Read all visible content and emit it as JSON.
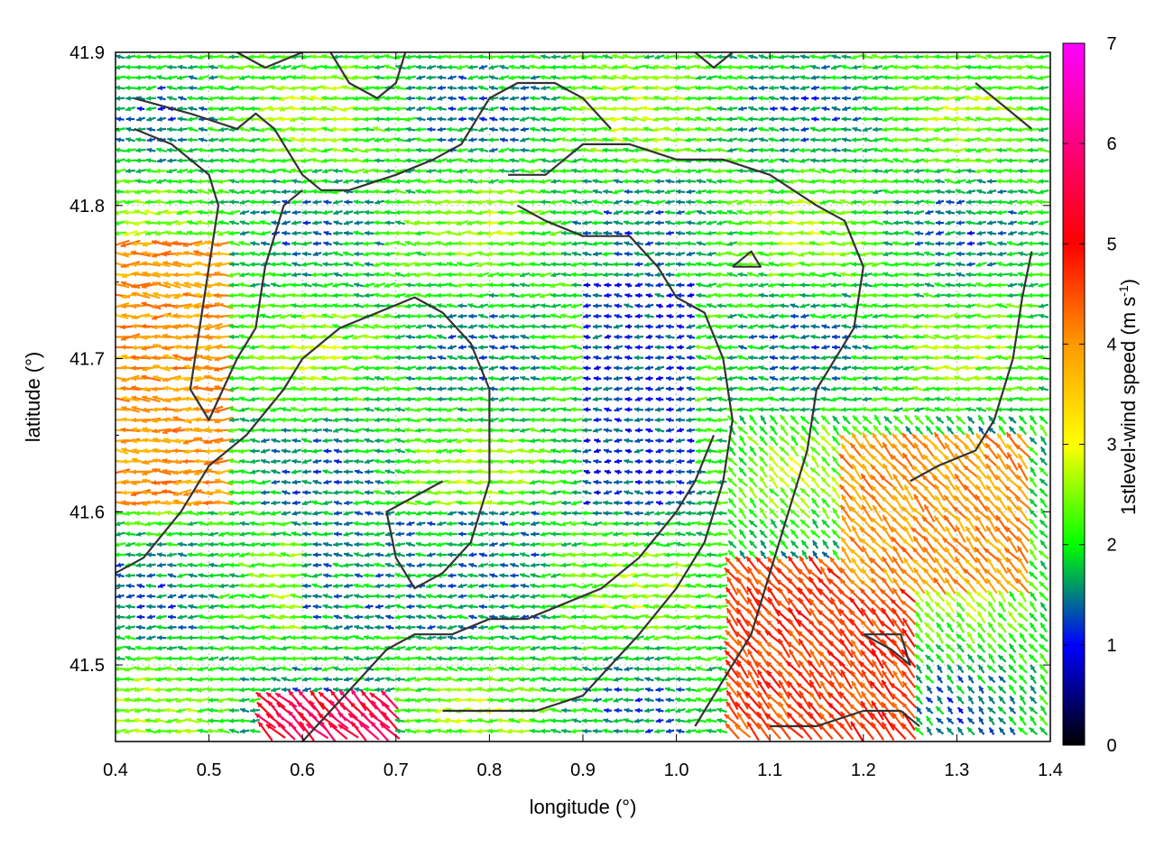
{
  "chart_data": {
    "type": "vector-field",
    "xlabel": "longitude (°)",
    "ylabel": "latitude (°)",
    "xlim": [
      0.4,
      1.4
    ],
    "ylim": [
      41.45,
      41.9
    ],
    "xticks": [
      "0.4",
      "0.5",
      "0.6",
      "0.7",
      "0.8",
      "0.9",
      "1.0",
      "1.1",
      "1.2",
      "1.3",
      "1.4"
    ],
    "yticks": [
      "41.5",
      "41.6",
      "41.7",
      "41.8",
      "41.9"
    ],
    "grid": true,
    "colorbar": {
      "label": "1stlevel-wind speed (m s",
      "label_sup": "-1",
      "label_close": ")",
      "range": [
        0,
        7
      ],
      "ticks": [
        "0",
        "1",
        "2",
        "3",
        "4",
        "5",
        "6",
        "7"
      ],
      "colors": [
        "#000000",
        "#0000ff",
        "#00ff00",
        "#ffff00",
        "#ff9900",
        "#ff0000",
        "#ff00ff"
      ]
    },
    "vectors_description_regions": [
      {
        "x": [
          0.4,
          0.52
        ],
        "y": [
          41.6,
          41.78
        ],
        "speed": 4.0
      },
      {
        "x": [
          0.9,
          1.02
        ],
        "y": [
          41.6,
          41.75
        ],
        "speed": 1.2
      },
      {
        "x": [
          1.05,
          1.25
        ],
        "y": [
          41.45,
          41.57
        ],
        "speed": 4.6
      },
      {
        "x": [
          1.18,
          1.38
        ],
        "y": [
          41.55,
          41.65
        ],
        "speed": 4.0
      },
      {
        "x": [
          0.55,
          0.7
        ],
        "y": [
          41.45,
          41.48
        ],
        "speed": 5.5
      },
      {
        "x": [
          0.6,
          0.85
        ],
        "y": [
          41.52,
          41.6
        ],
        "speed": 1.6
      }
    ],
    "contour_lines": [
      [
        [
          0.42,
          41.87
        ],
        [
          0.48,
          41.86
        ],
        [
          0.53,
          41.85
        ],
        [
          0.55,
          41.86
        ],
        [
          0.57,
          41.85
        ],
        [
          0.6,
          41.82
        ],
        [
          0.62,
          41.81
        ],
        [
          0.65,
          41.81
        ],
        [
          0.7,
          41.82
        ],
        [
          0.74,
          41.83
        ],
        [
          0.77,
          41.84
        ],
        [
          0.8,
          41.87
        ],
        [
          0.83,
          41.88
        ],
        [
          0.87,
          41.88
        ],
        [
          0.9,
          41.87
        ],
        [
          0.93,
          41.85
        ]
      ],
      [
        [
          0.42,
          41.85
        ],
        [
          0.46,
          41.84
        ],
        [
          0.5,
          41.82
        ],
        [
          0.51,
          41.8
        ],
        [
          0.5,
          41.76
        ],
        [
          0.49,
          41.72
        ],
        [
          0.48,
          41.68
        ],
        [
          0.5,
          41.66
        ],
        [
          0.53,
          41.7
        ],
        [
          0.55,
          41.72
        ],
        [
          0.56,
          41.76
        ],
        [
          0.58,
          41.8
        ],
        [
          0.6,
          41.81
        ]
      ],
      [
        [
          0.53,
          41.9
        ],
        [
          0.56,
          41.89
        ],
        [
          0.6,
          41.9
        ]
      ],
      [
        [
          0.63,
          41.9
        ],
        [
          0.65,
          41.88
        ],
        [
          0.68,
          41.87
        ],
        [
          0.7,
          41.88
        ],
        [
          0.71,
          41.9
        ]
      ],
      [
        [
          0.4,
          41.56
        ],
        [
          0.43,
          41.57
        ],
        [
          0.47,
          41.6
        ],
        [
          0.5,
          41.63
        ],
        [
          0.54,
          41.65
        ],
        [
          0.58,
          41.68
        ],
        [
          0.6,
          41.7
        ],
        [
          0.64,
          41.72
        ],
        [
          0.68,
          41.73
        ],
        [
          0.72,
          41.74
        ],
        [
          0.75,
          41.73
        ],
        [
          0.78,
          41.71
        ],
        [
          0.8,
          41.68
        ],
        [
          0.8,
          41.62
        ],
        [
          0.78,
          41.58
        ],
        [
          0.75,
          41.56
        ],
        [
          0.72,
          41.55
        ],
        [
          0.7,
          41.57
        ],
        [
          0.69,
          41.6
        ],
        [
          0.72,
          41.61
        ],
        [
          0.75,
          41.62
        ]
      ],
      [
        [
          0.82,
          41.82
        ],
        [
          0.86,
          41.82
        ],
        [
          0.9,
          41.84
        ],
        [
          0.95,
          41.84
        ],
        [
          1.0,
          41.83
        ],
        [
          1.05,
          41.83
        ],
        [
          1.1,
          41.82
        ],
        [
          1.15,
          41.8
        ],
        [
          1.18,
          41.79
        ],
        [
          1.2,
          41.76
        ],
        [
          1.19,
          41.72
        ],
        [
          1.17,
          41.7
        ],
        [
          1.15,
          41.68
        ],
        [
          1.14,
          41.64
        ],
        [
          1.12,
          41.6
        ],
        [
          1.1,
          41.56
        ],
        [
          1.08,
          41.52
        ],
        [
          1.05,
          41.49
        ],
        [
          1.02,
          41.46
        ]
      ],
      [
        [
          0.83,
          41.8
        ],
        [
          0.86,
          41.79
        ],
        [
          0.9,
          41.78
        ],
        [
          0.95,
          41.78
        ],
        [
          0.98,
          41.76
        ],
        [
          1.0,
          41.74
        ],
        [
          1.03,
          41.73
        ],
        [
          1.05,
          41.7
        ],
        [
          1.06,
          41.66
        ],
        [
          1.05,
          41.62
        ],
        [
          1.03,
          41.58
        ],
        [
          1.0,
          41.55
        ],
        [
          0.96,
          41.52
        ],
        [
          0.93,
          41.5
        ],
        [
          0.9,
          41.48
        ],
        [
          0.85,
          41.47
        ],
        [
          0.8,
          41.47
        ],
        [
          0.75,
          41.47
        ]
      ],
      [
        [
          0.6,
          41.45
        ],
        [
          0.63,
          41.47
        ],
        [
          0.66,
          41.49
        ],
        [
          0.69,
          41.51
        ],
        [
          0.72,
          41.52
        ],
        [
          0.76,
          41.52
        ],
        [
          0.8,
          41.53
        ],
        [
          0.84,
          41.53
        ],
        [
          0.88,
          41.54
        ],
        [
          0.92,
          41.55
        ],
        [
          0.96,
          41.57
        ],
        [
          1.0,
          41.6
        ],
        [
          1.02,
          41.62
        ],
        [
          1.04,
          41.65
        ]
      ],
      [
        [
          1.06,
          41.76
        ],
        [
          1.09,
          41.76
        ],
        [
          1.08,
          41.77
        ],
        [
          1.06,
          41.76
        ]
      ],
      [
        [
          1.2,
          41.52
        ],
        [
          1.24,
          41.52
        ],
        [
          1.25,
          41.5
        ],
        [
          1.23,
          41.51
        ],
        [
          1.2,
          41.52
        ]
      ],
      [
        [
          1.1,
          41.46
        ],
        [
          1.15,
          41.46
        ],
        [
          1.2,
          41.47
        ],
        [
          1.24,
          41.47
        ],
        [
          1.26,
          41.46
        ]
      ],
      [
        [
          1.25,
          41.62
        ],
        [
          1.28,
          41.63
        ],
        [
          1.32,
          41.64
        ],
        [
          1.34,
          41.66
        ],
        [
          1.36,
          41.7
        ],
        [
          1.37,
          41.74
        ],
        [
          1.38,
          41.77
        ]
      ],
      [
        [
          1.32,
          41.88
        ],
        [
          1.36,
          41.86
        ],
        [
          1.38,
          41.85
        ]
      ],
      [
        [
          1.02,
          41.9
        ],
        [
          1.04,
          41.89
        ],
        [
          1.06,
          41.9
        ]
      ]
    ]
  }
}
